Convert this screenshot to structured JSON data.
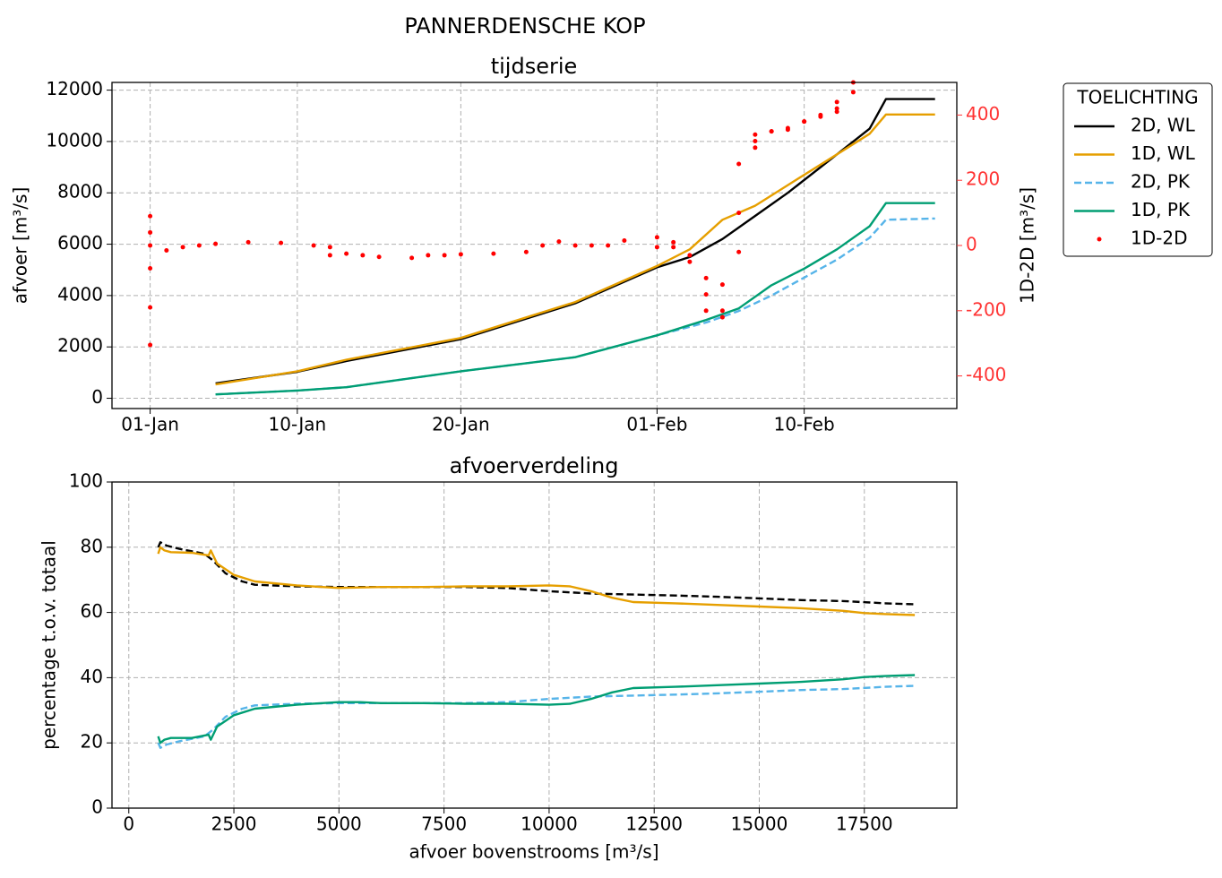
{
  "figure": {
    "suptitle": "PANNERDENSCHE KOP"
  },
  "legend": {
    "title": "TOELICHTING",
    "entries": [
      {
        "label": "2D, WL",
        "color": "#000000",
        "style": "solid"
      },
      {
        "label": "1D, WL",
        "color": "#E69F00",
        "style": "solid"
      },
      {
        "label": "2D, PK",
        "color": "#56B4E9",
        "style": "dashed"
      },
      {
        "label": "1D, PK",
        "color": "#009E73",
        "style": "solid"
      },
      {
        "label": "1D-2D",
        "color": "#FF0000",
        "style": "dot"
      }
    ]
  },
  "chart_data": [
    {
      "type": "line",
      "title": "tijdserie",
      "ylabel": "afvoer [m³/s]",
      "y2label": "1D-2D [m³/s]",
      "x_ticks": [
        "01-Jan",
        "10-Jan",
        "20-Jan",
        "01-Feb",
        "10-Feb"
      ],
      "xlim": [
        "2023-12-29T16:00",
        "2024-02-19T08:00"
      ],
      "ylim": [
        -400,
        12300
      ],
      "y_ticks": [
        0,
        2000,
        4000,
        6000,
        8000,
        10000,
        12000
      ],
      "y2lim": [
        -500,
        500
      ],
      "y2_ticks": [
        -400,
        -200,
        0,
        200,
        400
      ],
      "y2_color": "#FF3333",
      "grid": true,
      "series": [
        {
          "name": "2D, WL",
          "axis": "left",
          "color": "#000000",
          "style": "solid",
          "x": [
            "2024-01-05",
            "2024-01-10",
            "2024-01-13",
            "2024-01-20",
            "2024-01-27",
            "2024-02-01",
            "2024-02-03",
            "2024-02-05",
            "2024-02-07",
            "2024-02-09",
            "2024-02-12",
            "2024-02-14",
            "2024-02-15",
            "2024-02-18"
          ],
          "y": [
            580,
            1030,
            1450,
            2300,
            3700,
            5100,
            5500,
            6200,
            7100,
            8000,
            9500,
            10500,
            11650,
            11650
          ]
        },
        {
          "name": "1D, WL",
          "axis": "left",
          "color": "#E69F00",
          "style": "solid",
          "x": [
            "2024-01-05",
            "2024-01-10",
            "2024-01-13",
            "2024-01-20",
            "2024-01-27",
            "2024-02-01",
            "2024-02-03",
            "2024-02-05",
            "2024-02-07",
            "2024-02-09",
            "2024-02-12",
            "2024-02-14",
            "2024-02-15",
            "2024-02-18"
          ],
          "y": [
            540,
            1050,
            1500,
            2350,
            3750,
            5150,
            5800,
            6950,
            7500,
            8300,
            9500,
            10300,
            11050,
            11050
          ]
        },
        {
          "name": "2D, PK",
          "axis": "left",
          "color": "#56B4E9",
          "style": "dashed",
          "x": [
            "2024-01-05",
            "2024-01-10",
            "2024-01-13",
            "2024-01-20",
            "2024-01-27",
            "2024-02-01",
            "2024-02-04",
            "2024-02-06",
            "2024-02-08",
            "2024-02-10",
            "2024-02-12",
            "2024-02-14",
            "2024-02-15",
            "2024-02-18"
          ],
          "y": [
            150,
            300,
            430,
            1050,
            1600,
            2450,
            2950,
            3400,
            4000,
            4700,
            5400,
            6250,
            6950,
            7000
          ]
        },
        {
          "name": "1D, PK",
          "axis": "left",
          "color": "#009E73",
          "style": "solid",
          "x": [
            "2024-01-05",
            "2024-01-10",
            "2024-01-13",
            "2024-01-20",
            "2024-01-27",
            "2024-02-01",
            "2024-02-04",
            "2024-02-06",
            "2024-02-08",
            "2024-02-10",
            "2024-02-12",
            "2024-02-14",
            "2024-02-15",
            "2024-02-18"
          ],
          "y": [
            150,
            300,
            430,
            1050,
            1600,
            2450,
            3050,
            3500,
            4400,
            5050,
            5800,
            6700,
            7600,
            7600
          ]
        },
        {
          "name": "1D-2D",
          "axis": "right",
          "color": "#FF0000",
          "style": "dot",
          "x": [
            "2024-01-01",
            "2024-01-01",
            "2024-01-01",
            "2024-01-01",
            "2024-01-01",
            "2024-01-01",
            "2024-01-02",
            "2024-01-03",
            "2024-01-04",
            "2024-01-05",
            "2024-01-07",
            "2024-01-09",
            "2024-01-11",
            "2024-01-12",
            "2024-01-12",
            "2024-01-13",
            "2024-01-14",
            "2024-01-15",
            "2024-01-17",
            "2024-01-18",
            "2024-01-19",
            "2024-01-20",
            "2024-01-22",
            "2024-01-24",
            "2024-01-25",
            "2024-01-26",
            "2024-01-27",
            "2024-01-28",
            "2024-01-29",
            "2024-01-30",
            "2024-02-01",
            "2024-02-01",
            "2024-02-02",
            "2024-02-02",
            "2024-02-03",
            "2024-02-03",
            "2024-02-04",
            "2024-02-04",
            "2024-02-04",
            "2024-02-05",
            "2024-02-05",
            "2024-02-05",
            "2024-02-06",
            "2024-02-06",
            "2024-02-06",
            "2024-02-07",
            "2024-02-07",
            "2024-02-07",
            "2024-02-08",
            "2024-02-08",
            "2024-02-09",
            "2024-02-09",
            "2024-02-10",
            "2024-02-10",
            "2024-02-11",
            "2024-02-11",
            "2024-02-12",
            "2024-02-12",
            "2024-02-12",
            "2024-02-13",
            "2024-02-13"
          ],
          "y": [
            -305,
            -190,
            -70,
            90,
            40,
            0,
            -15,
            -5,
            0,
            5,
            10,
            8,
            0,
            -5,
            -30,
            -25,
            -30,
            -35,
            -38,
            -30,
            -30,
            -27,
            -25,
            -20,
            0,
            12,
            0,
            0,
            0,
            15,
            -5,
            25,
            -5,
            10,
            -30,
            -50,
            -100,
            -150,
            -200,
            -220,
            -200,
            -120,
            -20,
            100,
            250,
            300,
            320,
            340,
            350,
            350,
            355,
            360,
            380,
            380,
            395,
            400,
            410,
            420,
            440,
            470,
            500
          ]
        }
      ]
    },
    {
      "type": "line",
      "title": "afvoerverdeling",
      "xlabel": "afvoer bovenstrooms [m³/s]",
      "ylabel": "percentage t.o.v. totaal",
      "xlim": [
        -400,
        19700
      ],
      "x_ticks": [
        0,
        2500,
        5000,
        7500,
        10000,
        12500,
        15000,
        17500
      ],
      "ylim": [
        0,
        100
      ],
      "y_ticks": [
        0,
        20,
        40,
        60,
        80,
        100
      ],
      "grid": true,
      "series": [
        {
          "name": "2D, WL",
          "color": "#000000",
          "style": "dashed",
          "x": [
            700,
            750,
            900,
            1200,
            1800,
            2000,
            2300,
            2700,
            3000,
            4000,
            5000,
            6000,
            7000,
            8000,
            9000,
            10000,
            11000,
            12000,
            13000,
            14000,
            15000,
            16000,
            17000,
            18000,
            18700
          ],
          "y": [
            80,
            81.5,
            80.5,
            79.5,
            78,
            76,
            72,
            69.5,
            68.5,
            68,
            67.8,
            67.8,
            67.8,
            67.8,
            67.5,
            66.5,
            65.8,
            65.5,
            65.2,
            64.8,
            64.3,
            63.8,
            63.5,
            62.8,
            62.5
          ]
        },
        {
          "name": "1D, WL",
          "color": "#E69F00",
          "style": "solid",
          "x": [
            700,
            750,
            850,
            1000,
            1500,
            1900,
            1950,
            2100,
            2500,
            3000,
            4000,
            5000,
            6000,
            7000,
            8000,
            9000,
            10000,
            10500,
            11000,
            11500,
            12000,
            13000,
            14000,
            15000,
            16000,
            17000,
            17500,
            18000,
            18700
          ],
          "y": [
            78,
            80,
            79,
            78.5,
            78.3,
            77.5,
            79,
            75,
            71.5,
            69.5,
            68.3,
            67.5,
            67.8,
            67.8,
            68,
            68,
            68.3,
            68,
            66.5,
            64.5,
            63.2,
            62.8,
            62.3,
            61.8,
            61.3,
            60.5,
            59.8,
            59.5,
            59.2
          ]
        },
        {
          "name": "2D, PK",
          "color": "#56B4E9",
          "style": "dashed",
          "x": [
            700,
            750,
            900,
            1200,
            1800,
            2000,
            2300,
            2700,
            3000,
            4000,
            5000,
            6000,
            7000,
            8000,
            9000,
            10000,
            11000,
            12000,
            13000,
            14000,
            15000,
            16000,
            17000,
            18000,
            18700
          ],
          "y": [
            20,
            18.5,
            19.5,
            20.5,
            22,
            24,
            28,
            30.5,
            31.5,
            32,
            32.2,
            32.2,
            32.2,
            32.2,
            32.5,
            33.5,
            34.2,
            34.5,
            34.8,
            35.2,
            35.7,
            36.2,
            36.5,
            37.2,
            37.5
          ]
        },
        {
          "name": "1D, PK",
          "color": "#009E73",
          "style": "solid",
          "x": [
            700,
            750,
            850,
            1000,
            1500,
            1900,
            1950,
            2100,
            2500,
            3000,
            4000,
            5000,
            5500,
            6000,
            7000,
            8000,
            9000,
            10000,
            10500,
            11000,
            11500,
            12000,
            13000,
            14000,
            15000,
            16000,
            17000,
            17500,
            18000,
            18700
          ],
          "y": [
            22,
            20,
            21,
            21.5,
            21.5,
            22.5,
            21,
            25,
            28.5,
            30.5,
            31.7,
            32.5,
            32.5,
            32.2,
            32.2,
            32,
            32,
            31.7,
            32,
            33.5,
            35.5,
            36.8,
            37.2,
            37.7,
            38.2,
            38.7,
            39.5,
            40.2,
            40.5,
            40.8
          ]
        }
      ]
    }
  ]
}
